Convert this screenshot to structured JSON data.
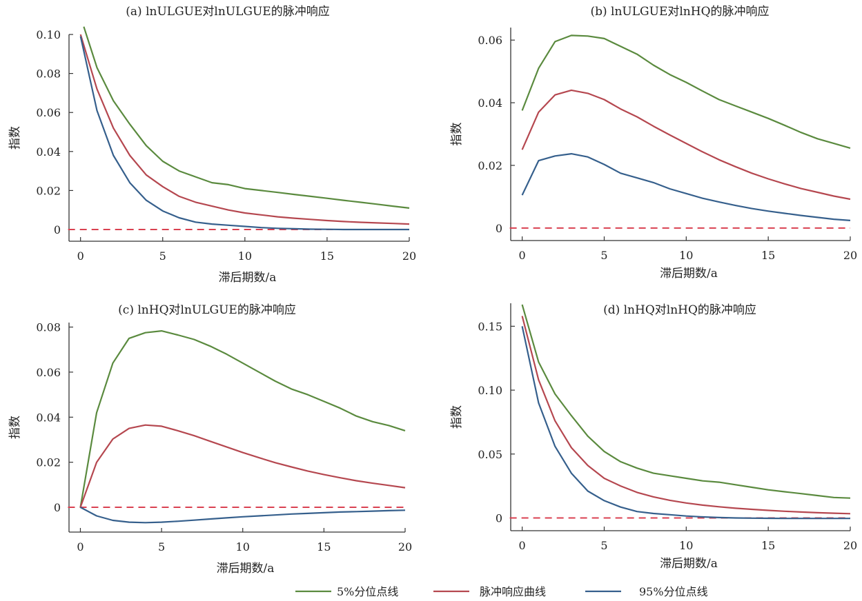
{
  "colors": {
    "green": "#5a8a3e",
    "red": "#b5474f",
    "blue": "#355f8c",
    "zero_line": "#d94050",
    "axis": "#333333"
  },
  "legend": [
    {
      "label": "5%分位点线",
      "color": "#5a8a3e"
    },
    {
      "label": "脉冲响应曲线",
      "color": "#b5474f"
    },
    {
      "label": "95%分位点线",
      "color": "#355f8c"
    }
  ],
  "chart_data": [
    {
      "type": "line",
      "title": "(a) lnULGUE对lnULGUE的脉冲响应",
      "xlabel": "滞后期数/a",
      "ylabel": "指数",
      "xlim": [
        -0.7,
        20
      ],
      "ylim": [
        -0.006,
        0.1
      ],
      "xticks": [
        "0",
        "5",
        "10",
        "15",
        "20"
      ],
      "yticks": [
        "0",
        "0.02",
        "0.04",
        "0.06",
        "0.08",
        "0.10"
      ],
      "ytick_values": [
        0,
        0.02,
        0.04,
        0.06,
        0.08,
        0.1
      ],
      "zero_line": true,
      "series": [
        {
          "name": "5%分位点线",
          "color": "green",
          "x": [
            0.2,
            1,
            2,
            3,
            4,
            5,
            6,
            7,
            8,
            9,
            10,
            11,
            12,
            13,
            14,
            15,
            16,
            17,
            18,
            19,
            20
          ],
          "values": [
            0.104,
            0.083,
            0.066,
            0.054,
            0.043,
            0.035,
            0.03,
            0.027,
            0.024,
            0.023,
            0.021,
            0.02,
            0.019,
            0.018,
            0.017,
            0.016,
            0.015,
            0.014,
            0.013,
            0.012,
            0.011
          ]
        },
        {
          "name": "脉冲响应曲线",
          "color": "red",
          "x": [
            0,
            1,
            2,
            3,
            4,
            5,
            6,
            7,
            8,
            9,
            10,
            11,
            12,
            13,
            14,
            15,
            16,
            17,
            18,
            19,
            20
          ],
          "values": [
            0.1,
            0.072,
            0.052,
            0.038,
            0.028,
            0.022,
            0.017,
            0.014,
            0.012,
            0.01,
            0.0085,
            0.0075,
            0.0065,
            0.0058,
            0.0052,
            0.0046,
            0.0041,
            0.0037,
            0.0034,
            0.0031,
            0.0028
          ]
        },
        {
          "name": "95%分位点线",
          "color": "blue",
          "x": [
            0,
            1,
            2,
            3,
            4,
            5,
            6,
            7,
            8,
            9,
            10,
            11,
            12,
            13,
            14,
            15,
            16,
            17,
            18,
            19,
            20
          ],
          "values": [
            0.099,
            0.061,
            0.038,
            0.024,
            0.015,
            0.0095,
            0.006,
            0.0038,
            0.0028,
            0.0022,
            0.0016,
            0.001,
            0.0006,
            0.0004,
            0.0002,
            0.0001,
            0.0,
            0.0,
            0.0,
            0.0,
            0.0
          ]
        }
      ]
    },
    {
      "type": "line",
      "title": "(b) lnULGUE对lnHQ的脉冲响应",
      "xlabel": "滞后期数/a",
      "ylabel": "指数",
      "xlim": [
        -0.7,
        20
      ],
      "ylim": [
        -0.004,
        0.064
      ],
      "xticks": [
        "0",
        "5",
        "10",
        "15",
        "20"
      ],
      "yticks": [
        "0",
        "0.02",
        "0.04",
        "0.06"
      ],
      "ytick_values": [
        0,
        0.02,
        0.04,
        0.06
      ],
      "zero_line": true,
      "series": [
        {
          "name": "5%分位点线",
          "color": "green",
          "x": [
            0,
            1,
            2,
            3,
            4,
            5,
            6,
            7,
            8,
            9,
            10,
            11,
            12,
            13,
            14,
            15,
            16,
            17,
            18,
            19,
            20
          ],
          "values": [
            0.0375,
            0.051,
            0.0595,
            0.0615,
            0.0613,
            0.0605,
            0.058,
            0.0555,
            0.052,
            0.049,
            0.0465,
            0.0437,
            0.041,
            0.039,
            0.037,
            0.035,
            0.0328,
            0.0305,
            0.0285,
            0.027,
            0.0255
          ]
        },
        {
          "name": "脉冲响应曲线",
          "color": "red",
          "x": [
            0,
            1,
            2,
            3,
            4,
            5,
            6,
            7,
            8,
            9,
            10,
            11,
            12,
            13,
            14,
            15,
            16,
            17,
            18,
            19,
            20
          ],
          "values": [
            0.025,
            0.037,
            0.0425,
            0.044,
            0.043,
            0.041,
            0.038,
            0.0355,
            0.0325,
            0.0297,
            0.027,
            0.0243,
            0.0218,
            0.0196,
            0.0175,
            0.0157,
            0.0141,
            0.0126,
            0.0114,
            0.0102,
            0.0092
          ]
        },
        {
          "name": "95%分位点线",
          "color": "blue",
          "x": [
            0,
            1,
            2,
            3,
            4,
            5,
            6,
            7,
            8,
            9,
            10,
            11,
            12,
            13,
            14,
            15,
            16,
            17,
            18,
            19,
            20
          ],
          "values": [
            0.0105,
            0.0215,
            0.023,
            0.0237,
            0.0227,
            0.0203,
            0.0175,
            0.016,
            0.0145,
            0.0125,
            0.011,
            0.0095,
            0.0083,
            0.0072,
            0.0062,
            0.0054,
            0.0047,
            0.004,
            0.0034,
            0.0028,
            0.0024
          ]
        }
      ]
    },
    {
      "type": "line",
      "title": "(c) lnHQ对lnULGUE的脉冲响应",
      "xlabel": "滞后期数/a",
      "ylabel": "指数",
      "xlim": [
        -0.7,
        20
      ],
      "ylim": [
        -0.011,
        0.082
      ],
      "xticks": [
        "0",
        "5",
        "10",
        "15",
        "20"
      ],
      "yticks": [
        "0",
        "0.02",
        "0.04",
        "0.06",
        "0.08"
      ],
      "ytick_values": [
        0,
        0.02,
        0.04,
        0.06,
        0.08
      ],
      "zero_line": true,
      "series": [
        {
          "name": "5%分位点线",
          "color": "green",
          "x": [
            0,
            1,
            2,
            3,
            4,
            5,
            6,
            7,
            8,
            9,
            10,
            11,
            12,
            13,
            14,
            15,
            16,
            17,
            18,
            19,
            20
          ],
          "values": [
            0.0,
            0.042,
            0.064,
            0.075,
            0.0775,
            0.0783,
            0.0765,
            0.0745,
            0.0715,
            0.068,
            0.064,
            0.06,
            0.056,
            0.0525,
            0.05,
            0.047,
            0.044,
            0.0405,
            0.038,
            0.0363,
            0.034
          ]
        },
        {
          "name": "脉冲响应曲线",
          "color": "red",
          "x": [
            0,
            1,
            2,
            3,
            4,
            5,
            6,
            7,
            8,
            9,
            10,
            11,
            12,
            13,
            14,
            15,
            16,
            17,
            18,
            19,
            20
          ],
          "values": [
            0.0,
            0.02,
            0.0303,
            0.035,
            0.0365,
            0.036,
            0.034,
            0.0318,
            0.0293,
            0.0268,
            0.0243,
            0.022,
            0.0198,
            0.0179,
            0.0161,
            0.0145,
            0.0131,
            0.0118,
            0.0107,
            0.0097,
            0.0087
          ]
        },
        {
          "name": "95%分位点线",
          "color": "blue",
          "x": [
            0,
            1,
            2,
            3,
            4,
            5,
            6,
            7,
            8,
            9,
            10,
            11,
            12,
            13,
            14,
            15,
            16,
            17,
            18,
            19,
            20
          ],
          "values": [
            0.0,
            -0.0038,
            -0.0058,
            -0.0066,
            -0.0068,
            -0.0066,
            -0.0062,
            -0.0057,
            -0.0052,
            -0.0047,
            -0.0042,
            -0.0038,
            -0.0034,
            -0.003,
            -0.0027,
            -0.0024,
            -0.0021,
            -0.0019,
            -0.0017,
            -0.0015,
            -0.0013
          ]
        }
      ]
    },
    {
      "type": "line",
      "title": "(d) lnHQ对lnHQ的脉冲响应",
      "xlabel": "滞后期数/a",
      "ylabel": "指数",
      "xlim": [
        -0.7,
        20
      ],
      "ylim": [
        -0.01,
        0.168
      ],
      "xticks": [
        "0",
        "5",
        "10",
        "15",
        "20"
      ],
      "yticks": [
        "0",
        "0.05",
        "0.10",
        "0.15"
      ],
      "ytick_values": [
        0,
        0.05,
        0.1,
        0.15
      ],
      "zero_line": true,
      "series": [
        {
          "name": "5%分位点线",
          "color": "green",
          "x": [
            0,
            1,
            2,
            3,
            4,
            5,
            6,
            7,
            8,
            9,
            10,
            11,
            12,
            13,
            14,
            15,
            16,
            17,
            18,
            19,
            20
          ],
          "values": [
            0.167,
            0.122,
            0.097,
            0.08,
            0.064,
            0.052,
            0.044,
            0.039,
            0.035,
            0.033,
            0.031,
            0.029,
            0.028,
            0.026,
            0.024,
            0.022,
            0.0205,
            0.019,
            0.0175,
            0.016,
            0.0155
          ]
        },
        {
          "name": "脉冲响应曲线",
          "color": "red",
          "x": [
            0,
            1,
            2,
            3,
            4,
            5,
            6,
            7,
            8,
            9,
            10,
            11,
            12,
            13,
            14,
            15,
            16,
            17,
            18,
            19,
            20
          ],
          "values": [
            0.158,
            0.108,
            0.076,
            0.055,
            0.041,
            0.031,
            0.025,
            0.02,
            0.0165,
            0.0138,
            0.0117,
            0.01,
            0.0087,
            0.0076,
            0.0067,
            0.0059,
            0.0052,
            0.0046,
            0.0041,
            0.0037,
            0.0033
          ]
        },
        {
          "name": "95%分位点线",
          "color": "blue",
          "x": [
            0,
            1,
            2,
            3,
            4,
            5,
            6,
            7,
            8,
            9,
            10,
            11,
            12,
            13,
            14,
            15,
            16,
            17,
            18,
            19,
            20
          ],
          "values": [
            0.15,
            0.09,
            0.056,
            0.035,
            0.021,
            0.0135,
            0.0085,
            0.005,
            0.0035,
            0.0025,
            0.0015,
            0.0008,
            0.0003,
            0.0,
            -0.0002,
            -0.0003,
            -0.0004,
            -0.0004,
            -0.0004,
            -0.0004,
            -0.0004
          ]
        }
      ]
    }
  ]
}
